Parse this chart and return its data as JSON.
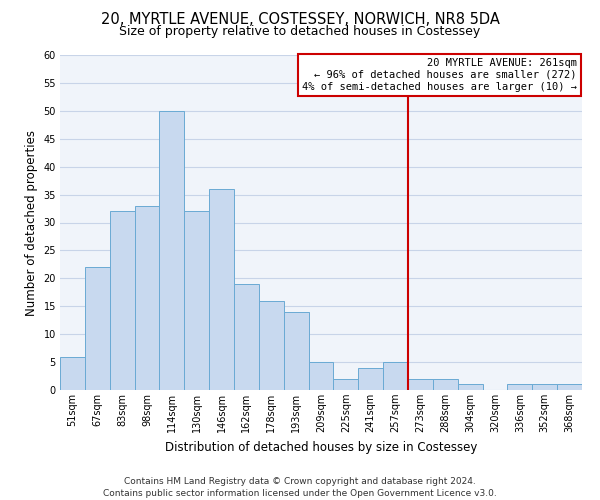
{
  "title": "20, MYRTLE AVENUE, COSTESSEY, NORWICH, NR8 5DA",
  "subtitle": "Size of property relative to detached houses in Costessey",
  "xlabel": "Distribution of detached houses by size in Costessey",
  "ylabel": "Number of detached properties",
  "bin_labels": [
    "51sqm",
    "67sqm",
    "83sqm",
    "98sqm",
    "114sqm",
    "130sqm",
    "146sqm",
    "162sqm",
    "178sqm",
    "193sqm",
    "209sqm",
    "225sqm",
    "241sqm",
    "257sqm",
    "273sqm",
    "288sqm",
    "304sqm",
    "320sqm",
    "336sqm",
    "352sqm",
    "368sqm"
  ],
  "bar_heights": [
    6,
    22,
    32,
    33,
    50,
    32,
    36,
    19,
    16,
    14,
    5,
    2,
    4,
    5,
    2,
    2,
    1,
    0,
    1,
    1,
    1
  ],
  "bar_color": "#c8d9ef",
  "bar_edge_color": "#6aaad4",
  "grid_color": "#c8d4e8",
  "vline_x_index": 13.5,
  "vline_color": "#cc0000",
  "annotation_title": "20 MYRTLE AVENUE: 261sqm",
  "annotation_line1": "← 96% of detached houses are smaller (272)",
  "annotation_line2": "4% of semi-detached houses are larger (10) →",
  "annotation_box_color": "#ffffff",
  "annotation_box_edge": "#cc0000",
  "ylim": [
    0,
    60
  ],
  "yticks": [
    0,
    5,
    10,
    15,
    20,
    25,
    30,
    35,
    40,
    45,
    50,
    55,
    60
  ],
  "footer1": "Contains HM Land Registry data © Crown copyright and database right 2024.",
  "footer2": "Contains public sector information licensed under the Open Government Licence v3.0.",
  "title_fontsize": 10.5,
  "subtitle_fontsize": 9,
  "xlabel_fontsize": 8.5,
  "ylabel_fontsize": 8.5,
  "tick_fontsize": 7,
  "footer_fontsize": 6.5,
  "ann_fontsize": 7.5
}
